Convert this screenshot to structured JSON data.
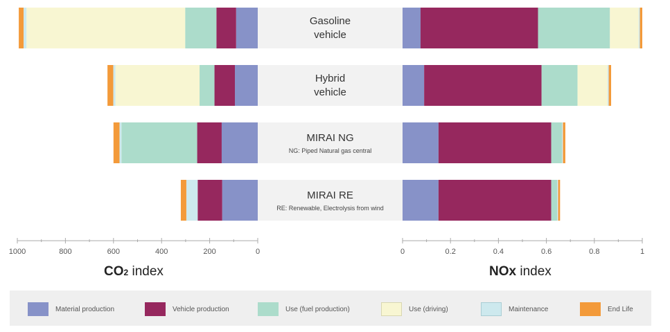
{
  "chart_data": [
    {
      "type": "bar",
      "orientation": "horizontal-diverging",
      "xlim": [
        0,
        1000
      ],
      "x_ticks": [
        1000,
        800,
        600,
        400,
        200,
        0
      ],
      "xlabel": {
        "prefix": "CO",
        "subscript": "2",
        "suffix": " index"
      },
      "categories": [
        "Gasoline vehicle",
        "Hybrid vehicle",
        "MIRAI NG",
        "MIRAI RE"
      ],
      "series": [
        {
          "name": "Material production",
          "values": [
            90,
            95,
            150,
            148
          ]
        },
        {
          "name": "Vehicle production",
          "values": [
            82,
            85,
            102,
            102
          ]
        },
        {
          "name": "Use (fuel production)",
          "values": [
            130,
            62,
            315,
            0
          ]
        },
        {
          "name": "Use (driving)",
          "values": [
            660,
            350,
            0,
            0
          ]
        },
        {
          "name": "Maintenance",
          "values": [
            12,
            9,
            8,
            47
          ]
        },
        {
          "name": "End Life",
          "values": [
            20,
            24,
            25,
            23
          ]
        }
      ]
    },
    {
      "type": "bar",
      "orientation": "horizontal",
      "xlim": [
        0,
        1
      ],
      "x_ticks": [
        "0",
        "0.2",
        "0.4",
        "0.6",
        "0.8",
        "1"
      ],
      "xlabel": {
        "prefix": "NOx",
        "suffix": " index"
      },
      "categories": [
        "Gasoline vehicle",
        "Hybrid vehicle",
        "MIRAI NG",
        "MIRAI RE"
      ],
      "series": [
        {
          "name": "Material production",
          "values": [
            0.075,
            0.09,
            0.15,
            0.15
          ]
        },
        {
          "name": "Vehicle production",
          "values": [
            0.49,
            0.49,
            0.47,
            0.47
          ]
        },
        {
          "name": "Use (fuel production)",
          "values": [
            0.3,
            0.15,
            0.045,
            0.025
          ]
        },
        {
          "name": "Use (driving)",
          "values": [
            0.12,
            0.125,
            0,
            0
          ]
        },
        {
          "name": "Maintenance",
          "values": [
            0.005,
            0.005,
            0.004,
            0.004
          ]
        },
        {
          "name": "End Life",
          "values": [
            0.01,
            0.01,
            0.01,
            0.008
          ]
        }
      ]
    }
  ],
  "row_labels": [
    {
      "line1": "Gasoline",
      "line2": "vehicle",
      "note": ""
    },
    {
      "line1": "Hybrid",
      "line2": "vehicle",
      "note": ""
    },
    {
      "line1": "MIRAI NG",
      "line2": "",
      "note": "NG: Piped Natural gas central"
    },
    {
      "line1": "MIRAI RE",
      "line2": "",
      "note": "RE: Renewable, Electrolysis from wind"
    }
  ],
  "colors": {
    "Material production": "#8792c8",
    "Vehicle production": "#96285e",
    "Use (fuel production)": "#acdccb",
    "Use (driving)": "#f8f6d2",
    "Maintenance": "#cde9ee",
    "End Life": "#f39a3a",
    "label_band": "#f2f2f2",
    "axis": "#aaaaaa"
  },
  "legend": [
    {
      "label": "Material production"
    },
    {
      "label": "Vehicle production"
    },
    {
      "label": "Use (fuel production)"
    },
    {
      "label": "Use (driving)"
    },
    {
      "label": "Maintenance"
    },
    {
      "label": "End Life"
    }
  ]
}
